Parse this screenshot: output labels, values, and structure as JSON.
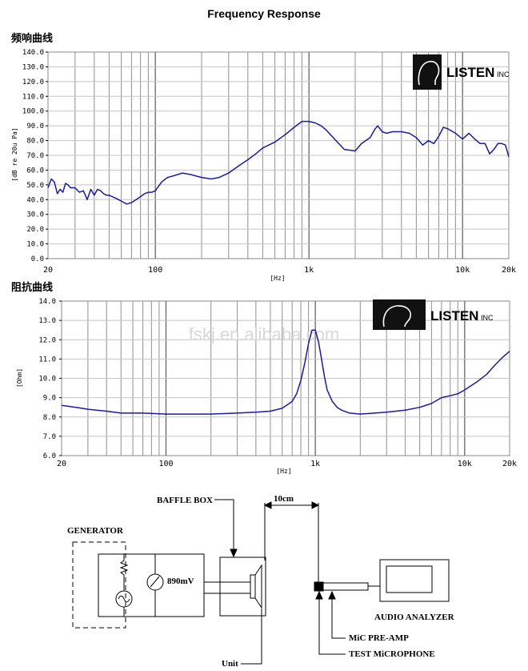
{
  "page_title": "Frequency    Response",
  "chart_data": [
    {
      "type": "line",
      "title": "频响曲线",
      "xlabel": "[Hz]",
      "ylabel": "[dB re 20u Pa]",
      "xscale": "log",
      "xlim": [
        20,
        20000
      ],
      "ylim": [
        0,
        140
      ],
      "grid": true,
      "legend": "none",
      "x_ticks": [
        "20",
        "100",
        "1k",
        "10k",
        "20k"
      ],
      "y_ticks": [
        "0.0",
        "10.0",
        "20.0",
        "30.0",
        "40.0",
        "50.0",
        "60.0",
        "70.0",
        "80.0",
        "90.0",
        "100.0",
        "110.0",
        "120.0",
        "130.0",
        "140.0"
      ],
      "logo": {
        "text": "LISTEN",
        "suffix": "INC"
      },
      "series": [
        {
          "color": "#1a1aa8",
          "x": [
            20,
            21,
            22,
            23,
            24,
            25,
            26,
            27,
            28,
            30,
            32,
            34,
            36,
            38,
            40,
            42,
            44,
            46,
            48,
            50,
            55,
            60,
            65,
            70,
            75,
            80,
            85,
            90,
            95,
            100,
            110,
            120,
            130,
            150,
            170,
            200,
            230,
            260,
            300,
            350,
            400,
            450,
            500,
            600,
            700,
            800,
            900,
            1000,
            1100,
            1200,
            1300,
            1500,
            1700,
            2000,
            2200,
            2500,
            2700,
            2800,
            3000,
            3200,
            3500,
            4000,
            4500,
            5000,
            5500,
            6000,
            6500,
            7000,
            7500,
            8000,
            9000,
            10000,
            11000,
            12000,
            13000,
            14000,
            15000,
            16000,
            17000,
            18000,
            19000,
            20000
          ],
          "y": [
            48,
            54,
            52,
            44,
            47,
            45,
            51,
            50,
            48,
            48,
            45,
            46,
            40,
            47,
            43,
            47,
            46,
            44,
            43,
            43,
            41,
            39,
            37,
            38,
            40,
            42,
            44,
            45,
            45,
            46,
            52,
            55,
            56,
            58,
            57,
            55,
            54,
            55,
            58,
            63,
            67,
            71,
            75,
            79,
            84,
            89,
            93,
            93,
            92,
            90,
            87,
            80,
            74,
            73,
            78,
            82,
            88,
            90,
            86,
            85,
            86,
            86,
            85,
            82,
            77,
            80,
            78,
            83,
            89,
            88,
            85,
            81,
            85,
            81,
            78,
            78,
            71,
            74,
            78,
            78,
            77,
            69
          ]
        }
      ]
    },
    {
      "type": "line",
      "title": "阻抗曲线",
      "xlabel": "[Hz]",
      "ylabel": "[Ohm]",
      "xscale": "log",
      "xlim": [
        20,
        20000
      ],
      "ylim": [
        6,
        14
      ],
      "grid": true,
      "legend": "none",
      "x_ticks": [
        "20",
        "100",
        "1k",
        "10k",
        "20k"
      ],
      "y_ticks": [
        "6.0",
        "7.0",
        "8.0",
        "9.0",
        "10.0",
        "11.0",
        "12.0",
        "13.0",
        "14.0"
      ],
      "logo": {
        "text": "LISTEN",
        "suffix": "INC"
      },
      "watermark": "fskj.en.alibaba.com",
      "series": [
        {
          "color": "#1a1aa8",
          "x": [
            20,
            25,
            30,
            40,
            50,
            70,
            100,
            150,
            200,
            300,
            400,
            500,
            600,
            700,
            750,
            800,
            850,
            900,
            950,
            1000,
            1050,
            1100,
            1150,
            1200,
            1300,
            1400,
            1500,
            1700,
            2000,
            2500,
            3000,
            4000,
            5000,
            6000,
            7000,
            8000,
            9000,
            10000,
            12000,
            14000,
            16000,
            18000,
            20000
          ],
          "y": [
            8.6,
            8.5,
            8.4,
            8.3,
            8.2,
            8.2,
            8.15,
            8.15,
            8.15,
            8.2,
            8.25,
            8.3,
            8.45,
            8.8,
            9.2,
            9.9,
            10.8,
            11.8,
            12.5,
            12.5,
            11.9,
            11.0,
            10.1,
            9.4,
            8.8,
            8.5,
            8.35,
            8.2,
            8.15,
            8.2,
            8.25,
            8.35,
            8.5,
            8.7,
            9.0,
            9.1,
            9.2,
            9.4,
            9.8,
            10.2,
            10.7,
            11.1,
            11.4
          ]
        }
      ]
    }
  ],
  "diagram": {
    "labels": {
      "generator": "GENERATOR",
      "baffle_box": "BAFFLE BOX",
      "distance": "10cm",
      "voltage": "890mV",
      "unit": "Unit",
      "audio_analyzer": "AUDIO ANALYZER",
      "mic_preamp": "MiC PRE-AMP",
      "test_microphone": "TEST MiCROPHONE"
    }
  }
}
